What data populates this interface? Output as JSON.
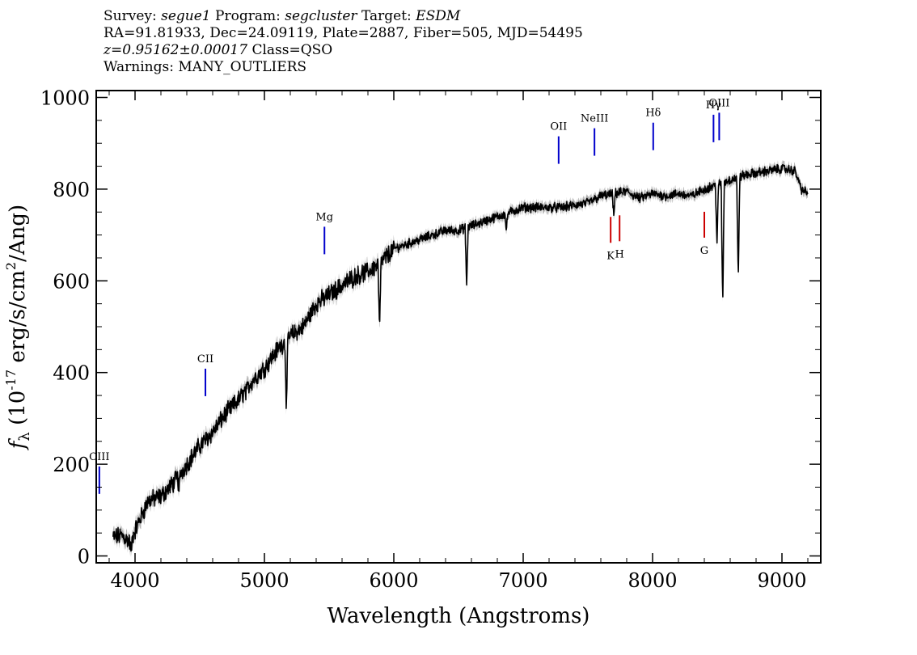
{
  "header": {
    "survey_label": "Survey: ",
    "survey_value": "segue1",
    "program_label": " Program: ",
    "program_value": "segcluster",
    "target_label": " Target: ",
    "target_value": "ESDM",
    "line2": "RA=91.81933, Dec=24.09119, Plate=2887, Fiber=505, MJD=54495",
    "redshift": "z=0.95162±0.00017",
    "class_text": " Class=QSO",
    "warnings": "Warnings: MANY_OUTLIERS"
  },
  "chart_data": {
    "type": "line",
    "xlabel": "Wavelength (Angstroms)",
    "ylabel": "f_λ (10^-17 erg/s/cm^2/Ang)",
    "xlim": [
      3700,
      9300
    ],
    "ylim": [
      -15,
      1015
    ],
    "x_ticks": [
      4000,
      5000,
      6000,
      7000,
      8000,
      9000
    ],
    "y_ticks": [
      0,
      200,
      400,
      600,
      800,
      1000
    ],
    "x_tick_labels": [
      "4000",
      "5000",
      "6000",
      "7000",
      "8000",
      "9000"
    ],
    "y_tick_labels": [
      "0",
      "200",
      "400",
      "600",
      "800",
      "1000"
    ],
    "grid": false,
    "colors": {
      "spectrum": "#000000",
      "error_band": "#b3b3b3",
      "emission": "#0000cc",
      "absorption": "#cc0000"
    },
    "spectrum_anchors": {
      "x": [
        3830,
        3900,
        3960,
        4000,
        4100,
        4200,
        4300,
        4400,
        4500,
        4600,
        4700,
        4800,
        4900,
        5000,
        5100,
        5200,
        5300,
        5400,
        5500,
        5600,
        5700,
        5800,
        5900,
        6000,
        6100,
        6200,
        6300,
        6400,
        6500,
        6600,
        6700,
        6800,
        6900,
        7000,
        7100,
        7200,
        7300,
        7400,
        7500,
        7600,
        7700,
        7800,
        7900,
        8000,
        8100,
        8200,
        8300,
        8400,
        8500,
        8600,
        8700,
        8800,
        8900,
        9000,
        9100,
        9150,
        9200
      ],
      "y": [
        40,
        45,
        30,
        55,
        120,
        130,
        160,
        200,
        240,
        270,
        310,
        340,
        380,
        410,
        450,
        480,
        500,
        550,
        570,
        590,
        610,
        620,
        640,
        670,
        680,
        690,
        700,
        710,
        710,
        720,
        730,
        740,
        750,
        760,
        760,
        760,
        760,
        765,
        770,
        785,
        790,
        795,
        780,
        790,
        785,
        790,
        785,
        800,
        810,
        820,
        830,
        835,
        840,
        845,
        840,
        800,
        790
      ]
    },
    "absorption_dips": [
      {
        "x": 5890,
        "y": 490
      },
      {
        "x": 5170,
        "y": 320
      },
      {
        "x": 6563,
        "y": 590
      },
      {
        "x": 8498,
        "y": 680
      },
      {
        "x": 8542,
        "y": 545
      },
      {
        "x": 8662,
        "y": 600
      },
      {
        "x": 3970,
        "y": 10
      },
      {
        "x": 4340,
        "y": 150
      },
      {
        "x": 4861,
        "y": 355
      },
      {
        "x": 7700,
        "y": 740
      },
      {
        "x": 6870,
        "y": 710
      }
    ],
    "emission_lines": [
      {
        "label": "CIII",
        "x": 3724
      },
      {
        "label": "CII",
        "x": 4544
      },
      {
        "label": "Mg",
        "x": 5464
      },
      {
        "label": "OII",
        "x": 7274
      },
      {
        "label": "NeIII",
        "x": 7551
      },
      {
        "label": "Hδ",
        "x": 8005
      },
      {
        "label": "Hγ",
        "x": 8471
      },
      {
        "label": "OIII",
        "x": 8515
      }
    ],
    "absorption_lines": [
      {
        "label": "K",
        "x": 7676
      },
      {
        "label": "H",
        "x": 7745
      },
      {
        "label": "G",
        "x": 8400
      }
    ]
  }
}
